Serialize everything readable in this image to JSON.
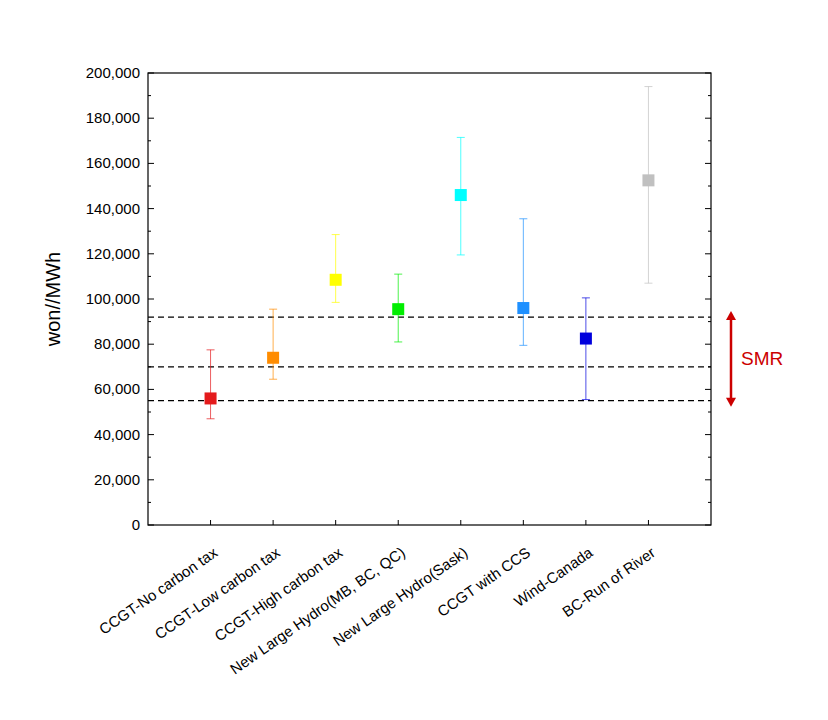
{
  "chart_data": {
    "type": "errorbar",
    "ylabel": "won//MWh",
    "categories": [
      "CCGT-No carbon tax",
      "CCGT-Low carbon tax",
      "CCGT-High carbon tax",
      "New Large Hydro(MB, BC, QC)",
      "New Large Hydro(Sask)",
      "CCGT with CCS",
      "Wind-Canada",
      "BC-Run of River"
    ],
    "values": [
      56000,
      74000,
      108500,
      95500,
      146000,
      96000,
      82500,
      152500
    ],
    "lower": [
      47000,
      64500,
      98500,
      81000,
      119500,
      79500,
      55500,
      107000
    ],
    "upper": [
      77500,
      95500,
      128500,
      111000,
      171500,
      135500,
      100500,
      194000
    ],
    "colors": [
      "#e41a1c",
      "#ff8c00",
      "#ffff00",
      "#00ee00",
      "#00ffff",
      "#1e90ff",
      "#0000dd",
      "#c0c0c0"
    ],
    "marker": "square",
    "ylim": [
      0,
      200000
    ],
    "yticks": [
      0,
      {
        "value": 20000,
        "label": "20,000"
      },
      {
        "value": 40000,
        "label": "40,000"
      },
      {
        "value": 60000,
        "label": "60,000"
      },
      {
        "value": 80000,
        "label": "80,000"
      },
      {
        "value": 100000,
        "label": "100,000"
      },
      {
        "value": 120000,
        "label": "120,000"
      },
      {
        "value": 140000,
        "label": "140,000"
      },
      {
        "value": 160000,
        "label": "160,000"
      },
      {
        "value": 180000,
        "label": "180,000"
      },
      {
        "value": 200000,
        "label": "200,000"
      }
    ],
    "reference_lines": [
      92000,
      70000,
      55000
    ],
    "line_style": "dashed",
    "annotation": {
      "text": "SMR",
      "color": "#cc0000"
    }
  }
}
